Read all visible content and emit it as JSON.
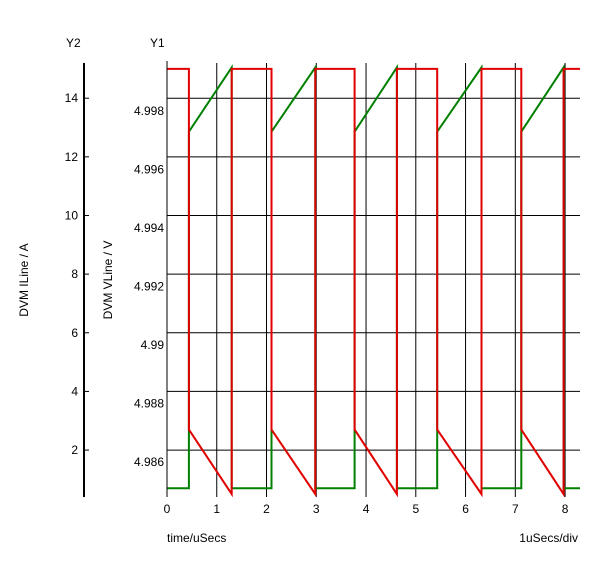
{
  "chart_data": {
    "type": "line",
    "x_axis": {
      "label": "time/uSecs",
      "units_label": "1uSecs/div",
      "ticks": [
        0,
        1,
        2,
        3,
        4,
        5,
        6,
        7,
        8
      ],
      "range": [
        0,
        8.3
      ]
    },
    "y1_axis": {
      "header": "Y1",
      "label": "DVM VLine / V",
      "ticks": [
        4.986,
        4.988,
        4.99,
        4.992,
        4.994,
        4.996,
        4.998
      ],
      "tick_labels": [
        "4.986",
        "4.988",
        "4.99",
        "4.992",
        "4.994",
        "4.996",
        "4.998"
      ],
      "range": [
        4.9848,
        4.99965
      ]
    },
    "y2_axis": {
      "header": "Y2",
      "label": "DVM ILine / A",
      "ticks": [
        2,
        4,
        6,
        8,
        10,
        12,
        14
      ],
      "range": [
        0.4,
        15.2
      ]
    },
    "grid": true,
    "series": [
      {
        "axis": "y1",
        "color": "#008000",
        "x": [
          0.0,
          0.44,
          0.44,
          1.3,
          1.3,
          2.1,
          2.1,
          2.98,
          2.98,
          3.77,
          3.77,
          4.62,
          4.62,
          5.43,
          5.43,
          6.32,
          6.32,
          7.12,
          7.12,
          7.97,
          7.97,
          8.3
        ],
        "y": [
          4.9851,
          4.9851,
          4.9973,
          4.9995,
          4.9851,
          4.9851,
          4.9973,
          4.9995,
          4.9851,
          4.9851,
          4.9973,
          4.9995,
          4.9851,
          4.9851,
          4.9973,
          4.9995,
          4.9851,
          4.9851,
          4.9973,
          4.9995,
          4.9851,
          4.9851
        ]
      },
      {
        "axis": "y2",
        "color": "#e00000",
        "x": [
          0.0,
          0.44,
          0.44,
          1.3,
          1.3,
          2.1,
          2.1,
          2.98,
          2.98,
          3.77,
          3.77,
          4.62,
          4.62,
          5.43,
          5.43,
          6.32,
          6.32,
          7.12,
          7.12,
          7.97,
          7.97,
          8.3
        ],
        "y": [
          15.0,
          15.0,
          2.7,
          0.5,
          15.0,
          15.0,
          2.7,
          0.5,
          15.0,
          15.0,
          2.7,
          0.5,
          15.0,
          15.0,
          2.7,
          0.5,
          15.0,
          15.0,
          2.7,
          0.5,
          15.0,
          15.0
        ]
      }
    ]
  }
}
